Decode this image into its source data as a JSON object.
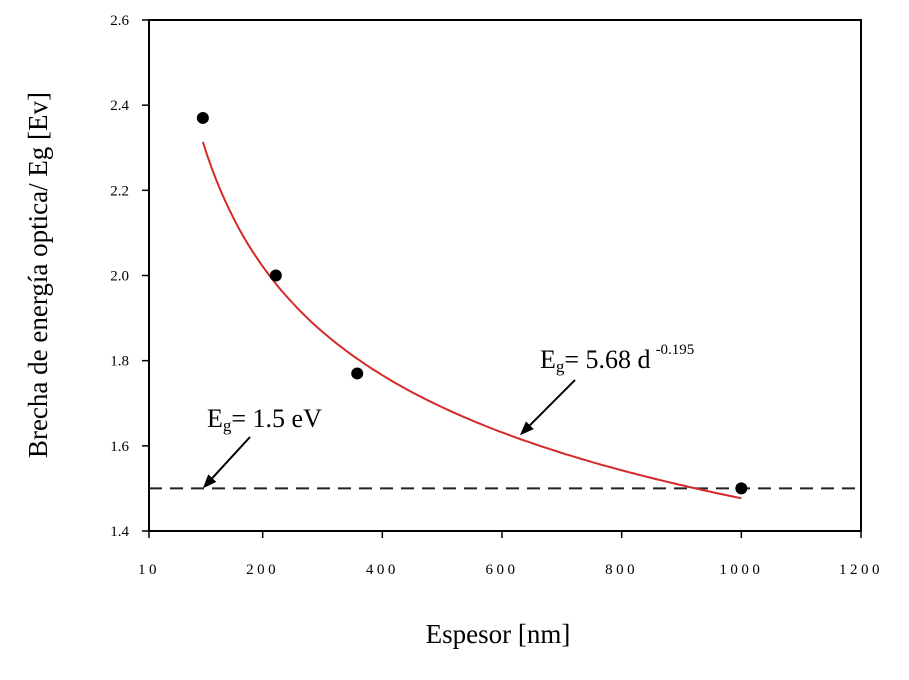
{
  "chart_data": {
    "type": "scatter",
    "title": "",
    "xlabel": "Espesor [nm]",
    "ylabel": "Brecha de energía optica/ Eg [Ev]",
    "xlim": [
      10,
      1200
    ],
    "ylim": [
      1.4,
      2.6
    ],
    "x_ticks": [
      10,
      200,
      400,
      600,
      800,
      1000,
      1200
    ],
    "x_tick_labels": [
      "10",
      "200",
      "400",
      "600",
      "800",
      "1000",
      "1200"
    ],
    "y_ticks": [
      1.4,
      1.6,
      1.8,
      2.0,
      2.2,
      2.4,
      2.6
    ],
    "y_tick_labels": [
      "1.4",
      "1.6",
      "1.8",
      "2.0",
      "2.2",
      "2.4",
      "2.6"
    ],
    "grid": false,
    "legend": "none",
    "series": [
      {
        "points": [
          [
            100,
            2.37
          ],
          [
            222,
            2.0
          ],
          [
            358,
            1.77
          ],
          [
            1000,
            1.5
          ]
        ],
        "marker": "filled-circle",
        "color": "#000000"
      }
    ],
    "fit_curve": {
      "coefficient": 5.68,
      "exponent": -0.195,
      "x_range": [
        100,
        1000
      ],
      "color": "#d42a2a"
    },
    "reference_line": {
      "y": 1.5,
      "style": "dashed",
      "color": "#222222"
    },
    "annotations": {
      "reference": {
        "main": "E",
        "sub": "g",
        "rest": "= 1.5 eV",
        "arrow_to": [
          100,
          1.5
        ]
      },
      "fit": {
        "main": "E",
        "sub": "g",
        "rest": "= 5.68 d",
        "sup": "-0.195",
        "arrow_to": [
          630,
          1.625
        ]
      }
    }
  }
}
